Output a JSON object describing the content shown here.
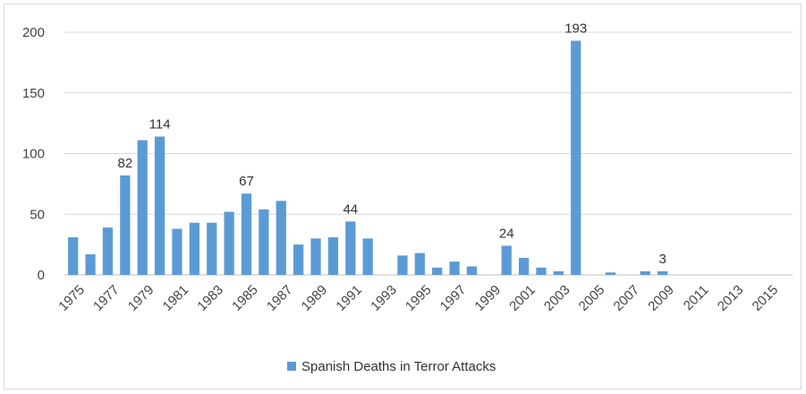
{
  "chart_data": {
    "type": "bar",
    "title": "",
    "xlabel": "",
    "ylabel": "",
    "ylim": [
      0,
      200
    ],
    "yticks": [
      0,
      50,
      100,
      150,
      200
    ],
    "grid": true,
    "legend_position": "bottom",
    "bar_color": "#5b9bd5",
    "categories": [
      "1975",
      "1976",
      "1977",
      "1978",
      "1979",
      "1980",
      "1981",
      "1982",
      "1983",
      "1984",
      "1985",
      "1986",
      "1987",
      "1988",
      "1989",
      "1990",
      "1991",
      "1992",
      "1993",
      "1994",
      "1995",
      "1996",
      "1997",
      "1998",
      "1999",
      "2000",
      "2001",
      "2002",
      "2003",
      "2004",
      "2005",
      "2006",
      "2007",
      "2008",
      "2009",
      "2010",
      "2011",
      "2012",
      "2013",
      "2014",
      "2015",
      "2016"
    ],
    "x_tick_labels": [
      "1975",
      "1977",
      "1979",
      "1981",
      "1983",
      "1985",
      "1987",
      "1989",
      "1991",
      "1993",
      "1995",
      "1997",
      "1999",
      "2001",
      "2003",
      "2005",
      "2007",
      "2009",
      "2011",
      "2013",
      "2015"
    ],
    "series": [
      {
        "name": "Spanish Deaths in Terror Attacks",
        "values": [
          31,
          17,
          39,
          82,
          111,
          114,
          38,
          43,
          43,
          52,
          67,
          54,
          61,
          25,
          30,
          31,
          44,
          30,
          0,
          16,
          18,
          6,
          11,
          7,
          0,
          24,
          14,
          6,
          3,
          193,
          0,
          2,
          0,
          3,
          3,
          0,
          0,
          0,
          0,
          0,
          0,
          0
        ]
      }
    ],
    "data_labels": [
      {
        "category": "1978",
        "text": "82"
      },
      {
        "category": "1980",
        "text": "114"
      },
      {
        "category": "1985",
        "text": "67"
      },
      {
        "category": "1991",
        "text": "44"
      },
      {
        "category": "2000",
        "text": "24"
      },
      {
        "category": "2004",
        "text": "193"
      },
      {
        "category": "2009",
        "text": "3"
      }
    ]
  }
}
